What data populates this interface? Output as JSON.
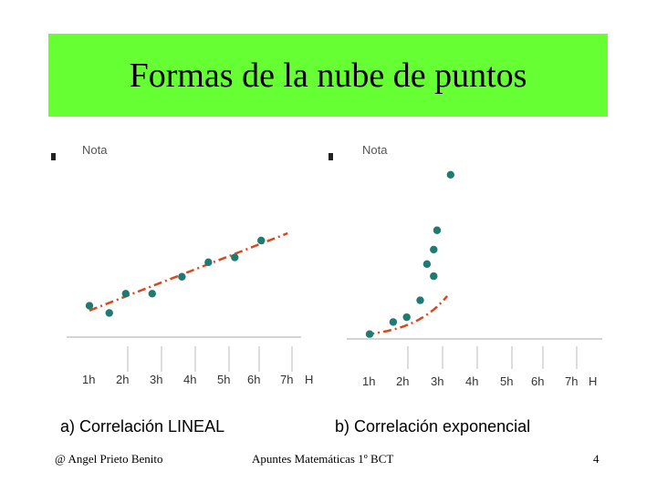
{
  "slide": {
    "title": "Formas de la nube de puntos",
    "footer_left": "@  Angel Prieto Benito",
    "footer_center": "Apuntes Matemáticas 1º BCT",
    "page_number": "4"
  },
  "colors": {
    "banner": "#66ff33",
    "point": "#1f7a72",
    "trend": "#d9481c",
    "axis": "#aaaaaa"
  },
  "chart_data": [
    {
      "type": "scatter",
      "title": "",
      "caption": "a) Correlación LINEAL",
      "ylabel": "Nota",
      "xlabel": "H",
      "categories": [
        "1h",
        "2h",
        "3h",
        "4h",
        "5h",
        "6h",
        "7h"
      ],
      "xlim": [
        0.2,
        7.0
      ],
      "ylim": [
        0,
        10
      ],
      "points": [
        [
          1.0,
          1.3
        ],
        [
          1.6,
          1.0
        ],
        [
          2.1,
          1.8
        ],
        [
          2.9,
          1.8
        ],
        [
          3.8,
          2.5
        ],
        [
          4.6,
          3.1
        ],
        [
          5.4,
          3.3
        ],
        [
          6.2,
          4.0
        ]
      ],
      "trend": {
        "kind": "linear",
        "from": [
          1.0,
          1.1
        ],
        "to": [
          7.0,
          4.3
        ]
      }
    },
    {
      "type": "scatter",
      "title": "",
      "caption": "b) Correlación exponencial",
      "ylabel": "Nota",
      "xlabel": "H",
      "categories": [
        "1h",
        "2h",
        "3h",
        "4h",
        "5h",
        "6h",
        "7h"
      ],
      "xlim": [
        0.2,
        7.0
      ],
      "ylim": [
        0,
        10
      ],
      "points": [
        [
          1.0,
          0.2
        ],
        [
          1.7,
          0.7
        ],
        [
          2.1,
          0.9
        ],
        [
          2.5,
          1.6
        ],
        [
          2.7,
          3.1
        ],
        [
          2.9,
          2.6
        ],
        [
          2.9,
          3.7
        ],
        [
          3.0,
          4.5
        ],
        [
          3.4,
          6.8
        ]
      ],
      "trend": {
        "kind": "exponential",
        "a": 0.2,
        "b": 0.95,
        "x_from": 0.9,
        "x_to": 3.3
      }
    }
  ]
}
